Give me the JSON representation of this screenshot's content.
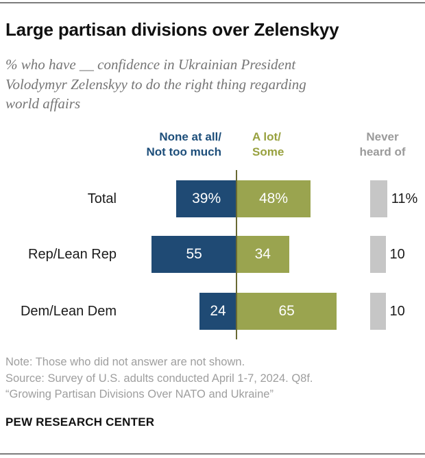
{
  "title": "Large partisan divisions over Zelenskyy",
  "subtitle_lines": [
    "% who have __ confidence in Ukrainian President",
    "Volodymyr Zelenskyy to do the right thing regarding",
    "world affairs"
  ],
  "columns": {
    "negative": {
      "line1": "None at all/",
      "line2": "Not too much",
      "color": "#1d4e7a"
    },
    "positive": {
      "line1": "A lot/",
      "line2": "Some",
      "color": "#98a13f"
    },
    "never": {
      "line1": "Never",
      "line2": "heard of",
      "color": "#9a9a9a"
    }
  },
  "chart_data": {
    "type": "bar",
    "subtype": "diverging-horizontal",
    "title": "Large partisan divisions over Zelenskyy",
    "unit": "%",
    "categories": [
      "Total",
      "Rep/Lean Rep",
      "Dem/Lean Dem"
    ],
    "series": [
      {
        "name": "None at all/Not too much",
        "color": "#1f4a74",
        "values": [
          39,
          55,
          24
        ],
        "display_labels": [
          "39%",
          "55",
          "24"
        ],
        "label_color": "#ffffff"
      },
      {
        "name": "A lot/Some",
        "color": "#9aa44f",
        "values": [
          48,
          34,
          65
        ],
        "display_labels": [
          "48%",
          "34",
          "65"
        ],
        "label_color": "#ffffff"
      },
      {
        "name": "Never heard of",
        "color": "#c6c6c6",
        "values": [
          11,
          10,
          10
        ],
        "display_labels": [
          "11%",
          "10",
          "10"
        ],
        "label_color": "#1a1a1a"
      }
    ],
    "layout_hints": {
      "pivot_axis_color": "#6a6a33",
      "legend_position": "column-headers-above-chart",
      "grid": false,
      "values_shown_inside_bars": true,
      "never_heard_of_shown_as_separate_column": true
    }
  },
  "notes": {
    "note": "Note: Those who did not answer are not shown.",
    "source": "Source: Survey of U.S. adults conducted April 1-7, 2024. Q8f.",
    "quote": "“Growing Partisan Divisions Over NATO and Ukraine”"
  },
  "footer": {
    "brand": "PEW RESEARCH CENTER"
  }
}
